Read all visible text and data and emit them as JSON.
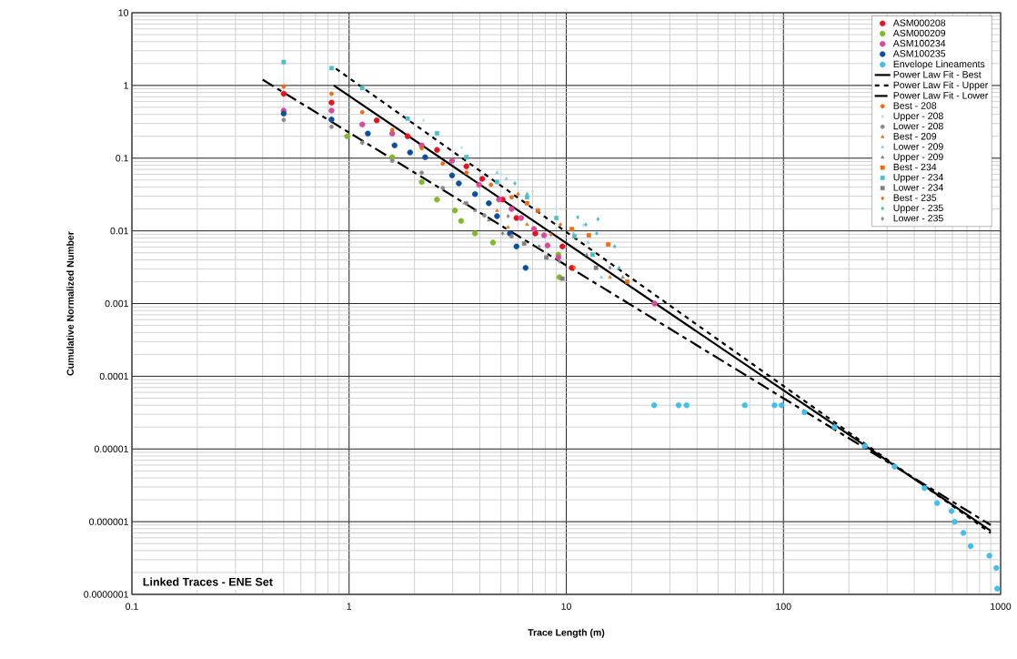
{
  "chart_data": {
    "type": "scatter",
    "xlabel": "Trace Length (m)",
    "ylabel": "Cumulative Normalized Number",
    "annotations": [
      "Linked Traces - ENE Set"
    ],
    "log": "xy",
    "grid": true,
    "legend": "top right",
    "xlim": [
      0.1,
      1000
    ],
    "ylim": [
      1e-07,
      10
    ],
    "xticks": [
      0.1,
      1,
      10,
      100,
      1000
    ],
    "yticks": [
      {
        "value": 1e-07,
        "label": "0.0000001"
      },
      {
        "value": 1e-06,
        "label": "0.000001"
      },
      {
        "value": 1e-05,
        "label": "0.00001"
      },
      0.0001,
      0.001,
      0.01,
      0.1,
      1,
      10
    ],
    "series": [
      {
        "name": "ASM000208",
        "color": "#e8101e",
        "marker": "circle",
        "x": [
          0.5,
          0.83,
          1.34,
          1.86,
          2.54,
          3.47,
          4.1,
          5.1,
          5.9,
          7.2,
          9.6,
          10.6
        ],
        "values": [
          0.77,
          0.58,
          0.33,
          0.2,
          0.13,
          0.077,
          0.052,
          0.027,
          0.015,
          0.0092,
          0.0061,
          0.0031
        ]
      },
      {
        "name": "ASM000209",
        "color": "#80ba2a",
        "marker": "circle",
        "x": [
          0.98,
          1.58,
          2.16,
          2.54,
          3.07,
          3.28,
          3.8,
          4.6,
          9.2,
          9.3
        ],
        "values": [
          0.2,
          0.103,
          0.047,
          0.027,
          0.019,
          0.0137,
          0.0092,
          0.0069,
          0.0047,
          0.0023
        ]
      },
      {
        "name": "ASM100234",
        "color": "#d94a9a",
        "marker": "circle",
        "x": [
          0.5,
          0.83,
          1.15,
          1.58,
          2.16,
          2.98,
          3.97,
          4.9,
          5.6,
          6.2,
          7.1,
          7.9,
          8.2,
          9.2,
          25.5
        ],
        "values": [
          0.45,
          0.45,
          0.29,
          0.218,
          0.15,
          0.092,
          0.043,
          0.027,
          0.02,
          0.015,
          0.0106,
          0.0087,
          0.0063,
          0.0043,
          0.001
        ]
      },
      {
        "name": "ASM100235",
        "color": "#0a4ea0",
        "marker": "circle",
        "x": [
          0.5,
          0.83,
          1.22,
          1.62,
          1.91,
          2.24,
          2.98,
          3.2,
          3.8,
          4.4,
          4.8,
          5.5,
          5.9,
          6.5
        ],
        "values": [
          0.41,
          0.34,
          0.218,
          0.15,
          0.12,
          0.103,
          0.058,
          0.045,
          0.032,
          0.024,
          0.0159,
          0.0092,
          0.0061,
          0.0031
        ]
      },
      {
        "name": "Envelope Lineaments",
        "color": "#41bfec",
        "marker": "circle",
        "x": [
          25.4,
          32.9,
          35.8,
          66.4,
          91,
          98,
          125,
          172,
          237,
          325,
          446,
          510,
          594,
          614,
          674,
          728,
          888,
          955,
          964
        ],
        "values": [
          4e-05,
          4e-05,
          4e-05,
          4e-05,
          4e-05,
          4e-05,
          3.2e-05,
          2e-05,
          1.1e-05,
          5.7e-06,
          2.9e-06,
          1.8e-06,
          1.4e-06,
          1e-06,
          7e-07,
          4.6e-07,
          3.4e-07,
          2.3e-07,
          1.2e-07
        ]
      },
      {
        "name": "Power Law Fit - Best",
        "type": "line",
        "color": "#000000",
        "marker": "none",
        "line_style": "solid",
        "x": [
          0.85,
          900
        ],
        "values": [
          1.0,
          7.5e-07
        ]
      },
      {
        "name": "Power Law Fit - Upper",
        "type": "line",
        "color": "#000000",
        "marker": "none",
        "line_style": "dotted",
        "x": [
          0.87,
          900
        ],
        "values": [
          1.7,
          7e-07
        ]
      },
      {
        "name": "Power Law Fit - Lower",
        "type": "line",
        "color": "#000000",
        "marker": "none",
        "line_style": "dashed",
        "x": [
          0.4,
          900
        ],
        "values": [
          1.2,
          9e-07
        ]
      },
      {
        "name": "Best - 208",
        "color": "#f26a10",
        "marker": "circle",
        "x": [
          0.5,
          0.83,
          1.15,
          1.58,
          2.16,
          2.7,
          3.47,
          4.5,
          5.6
        ],
        "values": [
          0.97,
          0.77,
          0.43,
          0.244,
          0.137,
          0.084,
          0.063,
          0.043,
          0.029
        ]
      },
      {
        "name": "Upper - 208",
        "color": "#bfe3f3",
        "marker": "diamond",
        "x": [
          2.2,
          3.3,
          5.0,
          7,
          9,
          12
        ],
        "values": [
          0.33,
          0.14,
          0.06,
          0.035,
          0.02,
          0.012
        ]
      },
      {
        "name": "Lower - 208",
        "color": "#8a8a8a",
        "marker": "circle",
        "x": [
          0.5,
          0.83,
          1.15,
          1.58,
          2.16,
          2.7,
          3.47,
          4.2,
          5.6
        ],
        "values": [
          0.335,
          0.27,
          0.163,
          0.092,
          0.063,
          0.039,
          0.024,
          0.0163,
          0.0084
        ]
      },
      {
        "name": "Best - 209",
        "color": "#f26a10",
        "marker": "triangle",
        "x": [
          4.8,
          5.4,
          6.6,
          15.9
        ],
        "values": [
          0.019,
          0.0112,
          0.0122,
          0.0023
        ]
      },
      {
        "name": "Lower - 209",
        "color": "#8ed0e8",
        "marker": "triangle",
        "x": [
          4.8,
          5.3,
          10.8,
          12.6,
          14.5
        ],
        "values": [
          0.063,
          0.052,
          0.0092,
          0.0069,
          0.0023
        ]
      },
      {
        "name": "Upper - 209",
        "color": "#808080",
        "marker": "triangle",
        "x": [
          3.4,
          3.8,
          4.4,
          12.4,
          18.2
        ],
        "values": [
          0.024,
          0.019,
          0.014,
          0.0047,
          0.0023
        ]
      },
      {
        "name": "Best - 234",
        "color": "#f26a10",
        "marker": "square",
        "x": [
          6.6,
          7.4,
          10.6,
          12.7,
          15.6,
          19.1
        ],
        "values": [
          0.024,
          0.019,
          0.0106,
          0.0087,
          0.0065,
          0.002
        ]
      },
      {
        "name": "Upper - 234",
        "color": "#4dbec8",
        "marker": "square",
        "x": [
          0.5,
          0.83,
          1.15,
          1.86,
          2.54,
          3.47,
          4.8,
          6.6,
          9.0,
          10.9,
          13.2
        ],
        "values": [
          2.1,
          1.73,
          0.92,
          0.35,
          0.22,
          0.103,
          0.047,
          0.029,
          0.015,
          0.0084,
          0.0047
        ]
      },
      {
        "name": "Lower - 234",
        "color": "#808080",
        "marker": "square",
        "x": [
          6.4,
          8.1,
          9.6,
          13.7
        ],
        "values": [
          0.0067,
          0.0043,
          0.0022,
          0.0031
        ]
      },
      {
        "name": "Best - 235",
        "color": "#f26a10",
        "marker": "diamond",
        "x": [
          6.0,
          8.5,
          9.4,
          10.9
        ],
        "values": [
          0.032,
          0.0089,
          0.0122,
          0.0031
        ]
      },
      {
        "name": "Upper - 235",
        "color": "#4bbfc5",
        "marker": "diamond",
        "x": [
          5.8,
          6.6,
          11.3,
          12.3,
          13.8,
          14,
          16.7,
          17.5
        ],
        "values": [
          0.045,
          0.032,
          0.0154,
          0.0122,
          0.0092,
          0.0145,
          0.0061,
          0.0031
        ]
      },
      {
        "name": "Lower - 235",
        "color": "#8a8a8a",
        "marker": "diamond",
        "x": [
          5.1,
          5.4,
          7.5,
          9.3,
          15.9
        ],
        "values": [
          0.0092,
          0.0159,
          0.0061,
          0.0038,
          0.0031
        ]
      }
    ]
  }
}
